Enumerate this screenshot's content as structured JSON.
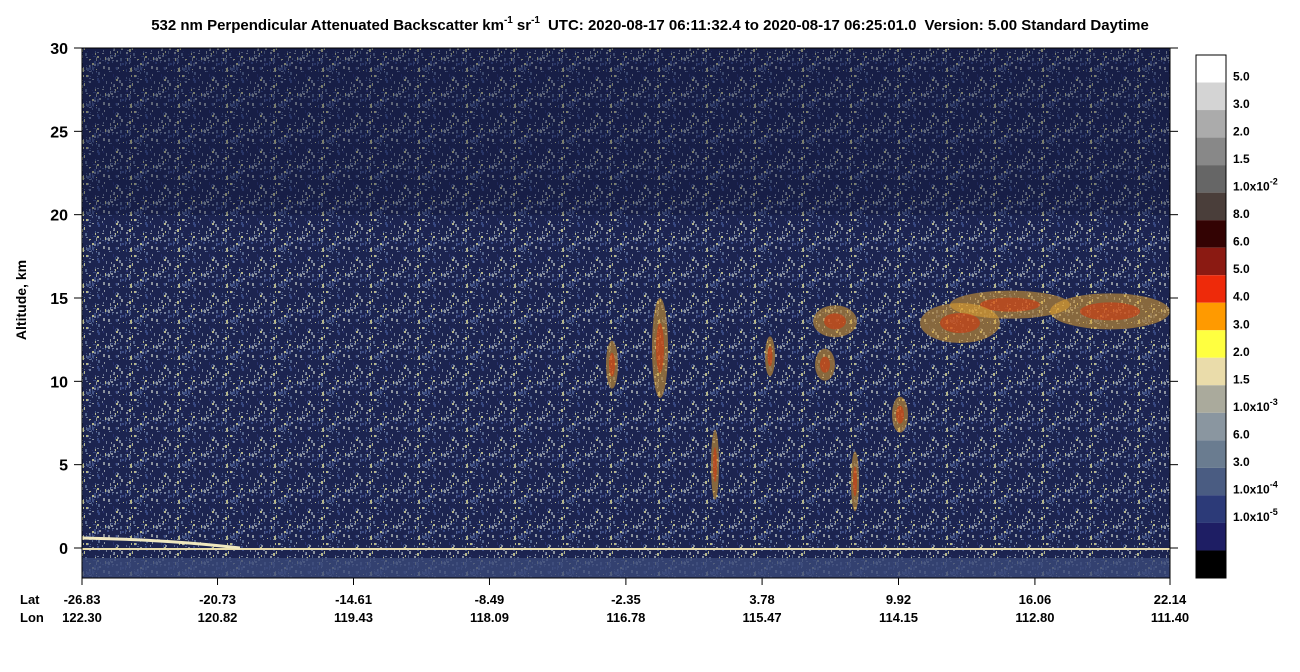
{
  "chart_data": {
    "type": "curtain",
    "title": "532 nm Perpendicular Attenuated Backscatter",
    "units": [
      "km",
      "-1",
      "sr",
      "-1"
    ],
    "time_range": "UTC: 2020-08-17 06:11:32.4 to 2020-08-17 06:25:01.0",
    "version": "Version: 5.00 Standard Daytime",
    "y_label": "Altitude, km",
    "ylim": [
      -1.8,
      30
    ],
    "yticks": [
      0,
      5,
      10,
      15,
      20,
      25,
      30
    ],
    "x_labels": [
      "Lat",
      "Lon"
    ],
    "xlim": [
      -26.83,
      22.14
    ],
    "xticks": [
      -26.83,
      -20.73,
      -14.61,
      -8.49,
      -2.35,
      3.78,
      9.92,
      16.06,
      22.14
    ],
    "lon_ticks": [
      {
        "value": 122.3,
        "label": "122.30"
      },
      120.82,
      119.43,
      118.09,
      116.78,
      115.47,
      114.15,
      {
        "value": 112.8,
        "label": "112.80"
      },
      {
        "value": 111.4,
        "label": "111.40"
      }
    ],
    "colorbar_colors": [
      "#ffffff",
      "#d4d4d4",
      "#ababab",
      "#888888",
      "#666666",
      "#4a3e3a",
      "#330303",
      "#8b1a12",
      "#ee2a0a",
      "#ff9a00",
      "#ffff40",
      "#eadcaa",
      "#aaaa9c",
      "#8a96a0",
      "#6a7c90",
      "#4a5c82",
      "#2c3a78",
      "#1e1e64",
      "#000000"
    ],
    "colorbar_labels": [
      {
        "label": "5.0"
      },
      {
        "label": "3.0"
      },
      {
        "label": "2.0"
      },
      {
        "label": "1.5"
      },
      {
        "label": "1.0x10",
        "sup": "-2"
      },
      {
        "label": "8.0"
      },
      {
        "label": "6.0"
      },
      {
        "label": "5.0"
      },
      {
        "label": "4.0"
      },
      {
        "label": "3.0"
      },
      {
        "label": "2.0"
      },
      {
        "label": "1.5"
      },
      {
        "label": "1.0x10",
        "sup": "-3"
      },
      {
        "label": "6.0"
      },
      {
        "label": "3.0"
      },
      {
        "label": "1.0x10",
        "sup": "-4"
      },
      {
        "label": "1.0x10",
        "sup": "-5"
      }
    ]
  }
}
